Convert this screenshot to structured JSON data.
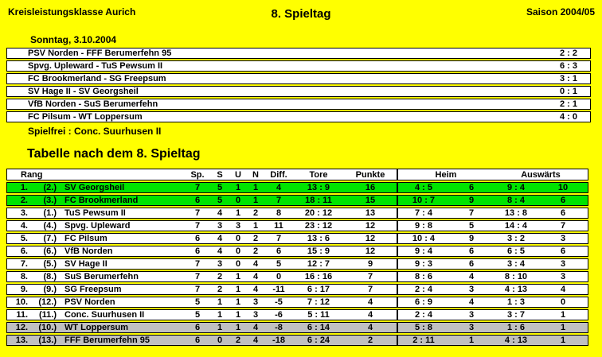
{
  "header": {
    "league": "Kreisleistungsklasse Aurich",
    "matchday": "8. Spieltag",
    "season": "Saison 2004/05"
  },
  "results": {
    "date": "Sonntag, 3.10.2004",
    "matches": [
      {
        "pairing": "PSV Norden - FFF Berumerfehn 95",
        "score": "2 : 2"
      },
      {
        "pairing": "Spvg. Upleward - TuS Pewsum II",
        "score": "6 : 3"
      },
      {
        "pairing": "FC Brookmerland - SG Freepsum",
        "score": "3 : 1"
      },
      {
        "pairing": "SV Hage II - SV Georgsheil",
        "score": "0 : 1"
      },
      {
        "pairing": "VfB Norden - SuS Berumerfehn",
        "score": "2 : 1"
      },
      {
        "pairing": "FC Pilsum - WT Loppersum",
        "score": "4 : 0"
      }
    ],
    "bye": "Spielfrei : Conc. Suurhusen II"
  },
  "standings": {
    "title": "Tabelle nach dem 8. Spieltag",
    "headers": {
      "rang": "Rang",
      "sp": "Sp.",
      "s": "S",
      "u": "U",
      "n": "N",
      "diff": "Diff.",
      "tore": "Tore",
      "punkte": "Punkte",
      "heim": "Heim",
      "auswaerts": "Auswärts"
    },
    "rows": [
      {
        "rank": "1.",
        "prev": "(2.)",
        "team": "SV Georgsheil",
        "sp": "7",
        "s": "5",
        "u": "1",
        "n": "1",
        "diff": "4",
        "tore": "13 : 9",
        "punkte": "16",
        "heim_tore": "4 : 5",
        "heim_punkte": "6",
        "ausw_tore": "9 : 4",
        "ausw_punkte": "10",
        "highlight": "green"
      },
      {
        "rank": "2.",
        "prev": "(3.)",
        "team": "FC Brookmerland",
        "sp": "6",
        "s": "5",
        "u": "0",
        "n": "1",
        "diff": "7",
        "tore": "18 : 11",
        "punkte": "15",
        "heim_tore": "10 : 7",
        "heim_punkte": "9",
        "ausw_tore": "8 : 4",
        "ausw_punkte": "6",
        "highlight": "green"
      },
      {
        "rank": "3.",
        "prev": "(1.)",
        "team": "TuS Pewsum II",
        "sp": "7",
        "s": "4",
        "u": "1",
        "n": "2",
        "diff": "8",
        "tore": "20 : 12",
        "punkte": "13",
        "heim_tore": "7 : 4",
        "heim_punkte": "7",
        "ausw_tore": "13 : 8",
        "ausw_punkte": "6",
        "highlight": "none"
      },
      {
        "rank": "4.",
        "prev": "(4.)",
        "team": "Spvg. Upleward",
        "sp": "7",
        "s": "3",
        "u": "3",
        "n": "1",
        "diff": "11",
        "tore": "23 : 12",
        "punkte": "12",
        "heim_tore": "9 : 8",
        "heim_punkte": "5",
        "ausw_tore": "14 : 4",
        "ausw_punkte": "7",
        "highlight": "none"
      },
      {
        "rank": "5.",
        "prev": "(7.)",
        "team": "FC Pilsum",
        "sp": "6",
        "s": "4",
        "u": "0",
        "n": "2",
        "diff": "7",
        "tore": "13 : 6",
        "punkte": "12",
        "heim_tore": "10 : 4",
        "heim_punkte": "9",
        "ausw_tore": "3 : 2",
        "ausw_punkte": "3",
        "highlight": "none"
      },
      {
        "rank": "6.",
        "prev": "(6.)",
        "team": "VfB Norden",
        "sp": "6",
        "s": "4",
        "u": "0",
        "n": "2",
        "diff": "6",
        "tore": "15 : 9",
        "punkte": "12",
        "heim_tore": "9 : 4",
        "heim_punkte": "6",
        "ausw_tore": "6 : 5",
        "ausw_punkte": "6",
        "highlight": "none"
      },
      {
        "rank": "7.",
        "prev": "(5.)",
        "team": "SV Hage II",
        "sp": "7",
        "s": "3",
        "u": "0",
        "n": "4",
        "diff": "5",
        "tore": "12 : 7",
        "punkte": "9",
        "heim_tore": "9 : 3",
        "heim_punkte": "6",
        "ausw_tore": "3 : 4",
        "ausw_punkte": "3",
        "highlight": "none"
      },
      {
        "rank": "8.",
        "prev": "(8.)",
        "team": "SuS Berumerfehn",
        "sp": "7",
        "s": "2",
        "u": "1",
        "n": "4",
        "diff": "0",
        "tore": "16 : 16",
        "punkte": "7",
        "heim_tore": "8 : 6",
        "heim_punkte": "4",
        "ausw_tore": "8 : 10",
        "ausw_punkte": "3",
        "highlight": "none"
      },
      {
        "rank": "9.",
        "prev": "(9.)",
        "team": "SG Freepsum",
        "sp": "7",
        "s": "2",
        "u": "1",
        "n": "4",
        "diff": "-11",
        "tore": "6 : 17",
        "punkte": "7",
        "heim_tore": "2 : 4",
        "heim_punkte": "3",
        "ausw_tore": "4 : 13",
        "ausw_punkte": "4",
        "highlight": "none"
      },
      {
        "rank": "10.",
        "prev": "(12.)",
        "team": "PSV Norden",
        "sp": "5",
        "s": "1",
        "u": "1",
        "n": "3",
        "diff": "-5",
        "tore": "7 : 12",
        "punkte": "4",
        "heim_tore": "6 : 9",
        "heim_punkte": "4",
        "ausw_tore": "1 : 3",
        "ausw_punkte": "0",
        "highlight": "none"
      },
      {
        "rank": "11.",
        "prev": "(11.)",
        "team": "Conc. Suurhusen II",
        "sp": "5",
        "s": "1",
        "u": "1",
        "n": "3",
        "diff": "-6",
        "tore": "5 : 11",
        "punkte": "4",
        "heim_tore": "2 : 4",
        "heim_punkte": "3",
        "ausw_tore": "3 : 7",
        "ausw_punkte": "1",
        "highlight": "none"
      },
      {
        "rank": "12.",
        "prev": "(10.)",
        "team": "WT Loppersum",
        "sp": "6",
        "s": "1",
        "u": "1",
        "n": "4",
        "diff": "-8",
        "tore": "6 : 14",
        "punkte": "4",
        "heim_tore": "5 : 8",
        "heim_punkte": "3",
        "ausw_tore": "1 : 6",
        "ausw_punkte": "1",
        "highlight": "gray"
      },
      {
        "rank": "13.",
        "prev": "(13.)",
        "team": "FFF Berumerfehn 95",
        "sp": "6",
        "s": "0",
        "u": "2",
        "n": "4",
        "diff": "-18",
        "tore": "6 : 24",
        "punkte": "2",
        "heim_tore": "2 : 11",
        "heim_punkte": "1",
        "ausw_tore": "4 : 13",
        "ausw_punkte": "1",
        "highlight": "gray"
      }
    ]
  },
  "colors": {
    "background": "#FFFF00",
    "promotion_green": "#00E400",
    "relegation_gray": "#C0C0C0",
    "row_white": "#FFFFFF",
    "text": "#000000"
  }
}
